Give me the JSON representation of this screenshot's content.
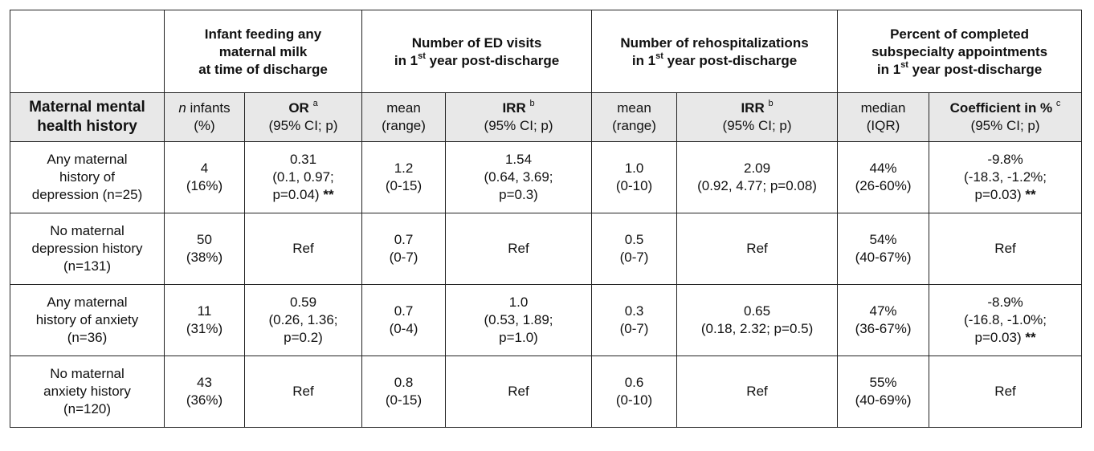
{
  "group_headers": [
    {
      "line1": "Infant feeding any",
      "line2": "maternal milk",
      "line3": "at time of discharge"
    },
    {
      "line1": "Number of ED visits",
      "line2_pre": "in 1",
      "line2_sup": "st",
      "line2_post": " year post-discharge"
    },
    {
      "line1": "Number of rehospitalizations",
      "line2_pre": "in 1",
      "line2_sup": "st",
      "line2_post": " year post-discharge"
    },
    {
      "line1": "Percent of completed",
      "line2": "subspecialty appointments",
      "line3_pre": "in 1",
      "line3_sup": "st",
      "line3_post": " year post-discharge"
    }
  ],
  "sub_headers": {
    "row_label_1": "Maternal mental",
    "row_label_2": "health history",
    "n_infants_italic": "n",
    "n_infants_rest": " infants",
    "n_infants_pct": "(%)",
    "or_label": "OR",
    "or_sup": "a",
    "ci_p": "(95% CI; p)",
    "mean": "mean",
    "range": "(range)",
    "irr_label": "IRR",
    "irr_sup_1": "b",
    "irr_sup_2": "b",
    "median": "median",
    "iqr": "(IQR)",
    "coef_label": "Coefficient in %",
    "coef_sup": "c"
  },
  "rows": [
    {
      "label": [
        "Any maternal",
        "history of",
        "depression (n=25)"
      ],
      "n": [
        "4",
        "(16%)"
      ],
      "or": [
        "0.31",
        "(0.1, 0.97;",
        "p=0.04)"
      ],
      "or_sig": "**",
      "ed_mean": [
        "1.2",
        "(0-15)"
      ],
      "ed_irr": [
        "1.54",
        "(0.64, 3.69;",
        "p=0.3)"
      ],
      "rh_mean": [
        "1.0",
        "(0-10)"
      ],
      "rh_irr": [
        "2.09",
        "(0.92, 4.77; p=0.08)"
      ],
      "median": [
        "44%",
        "(26-60%)"
      ],
      "coef": [
        "-9.8%",
        "(-18.3, -1.2%;",
        "p=0.03)"
      ],
      "coef_sig": "**"
    },
    {
      "label": [
        "No maternal",
        "depression history",
        "(n=131)"
      ],
      "n": [
        "50",
        "(38%)"
      ],
      "or": [
        "Ref"
      ],
      "or_sig": "",
      "ed_mean": [
        "0.7",
        "(0-7)"
      ],
      "ed_irr": [
        "Ref"
      ],
      "rh_mean": [
        "0.5",
        "(0-7)"
      ],
      "rh_irr": [
        "Ref"
      ],
      "median": [
        "54%",
        "(40-67%)"
      ],
      "coef": [
        "Ref"
      ],
      "coef_sig": ""
    },
    {
      "label": [
        "Any maternal",
        "history of anxiety",
        "(n=36)"
      ],
      "n": [
        "11",
        "(31%)"
      ],
      "or": [
        "0.59",
        "(0.26, 1.36;",
        "p=0.2)"
      ],
      "or_sig": "",
      "ed_mean": [
        "0.7",
        "(0-4)"
      ],
      "ed_irr": [
        "1.0",
        "(0.53, 1.89;",
        "p=1.0)"
      ],
      "rh_mean": [
        "0.3",
        "(0-7)"
      ],
      "rh_irr": [
        "0.65",
        "(0.18, 2.32; p=0.5)"
      ],
      "median": [
        "47%",
        "(36-67%)"
      ],
      "coef": [
        "-8.9%",
        "(-16.8, -1.0%;",
        "p=0.03)"
      ],
      "coef_sig": "**"
    },
    {
      "label": [
        "No maternal",
        "anxiety history",
        "(n=120)"
      ],
      "n": [
        "43",
        "(36%)"
      ],
      "or": [
        "Ref"
      ],
      "or_sig": "",
      "ed_mean": [
        "0.8",
        "(0-15)"
      ],
      "ed_irr": [
        "Ref"
      ],
      "rh_mean": [
        "0.6",
        "(0-10)"
      ],
      "rh_irr": [
        "Ref"
      ],
      "median": [
        "55%",
        "(40-69%)"
      ],
      "coef": [
        "Ref"
      ],
      "coef_sig": ""
    }
  ]
}
